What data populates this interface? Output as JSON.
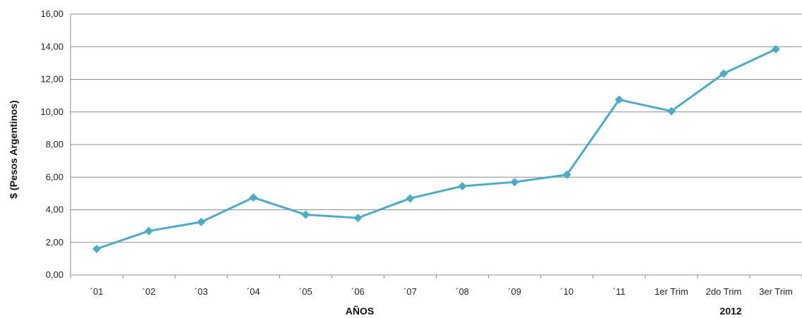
{
  "chart_data": {
    "type": "line",
    "title": "",
    "xlabel": "AÑOS",
    "ylabel": "$ (Pesos Argentinos)",
    "group_label": "2012",
    "categories": [
      "´01",
      "´02",
      "´03",
      "´04",
      "´05",
      "´06",
      "´07",
      "´08",
      "´09",
      "´10",
      "´11",
      "1er Trim",
      "2do Trim",
      "3er Trim"
    ],
    "series": [
      {
        "values": [
          1.6,
          2.7,
          3.25,
          4.75,
          3.7,
          3.5,
          4.7,
          5.45,
          5.7,
          6.15,
          10.75,
          10.05,
          12.35,
          13.85
        ],
        "color": "#4bacc6"
      }
    ],
    "yticks": [
      "0,00",
      "2,00",
      "4,00",
      "6,00",
      "8,00",
      "10,00",
      "12,00",
      "14,00",
      "16,00"
    ],
    "ylim": [
      0,
      16
    ],
    "grid": true,
    "legend": "none"
  }
}
